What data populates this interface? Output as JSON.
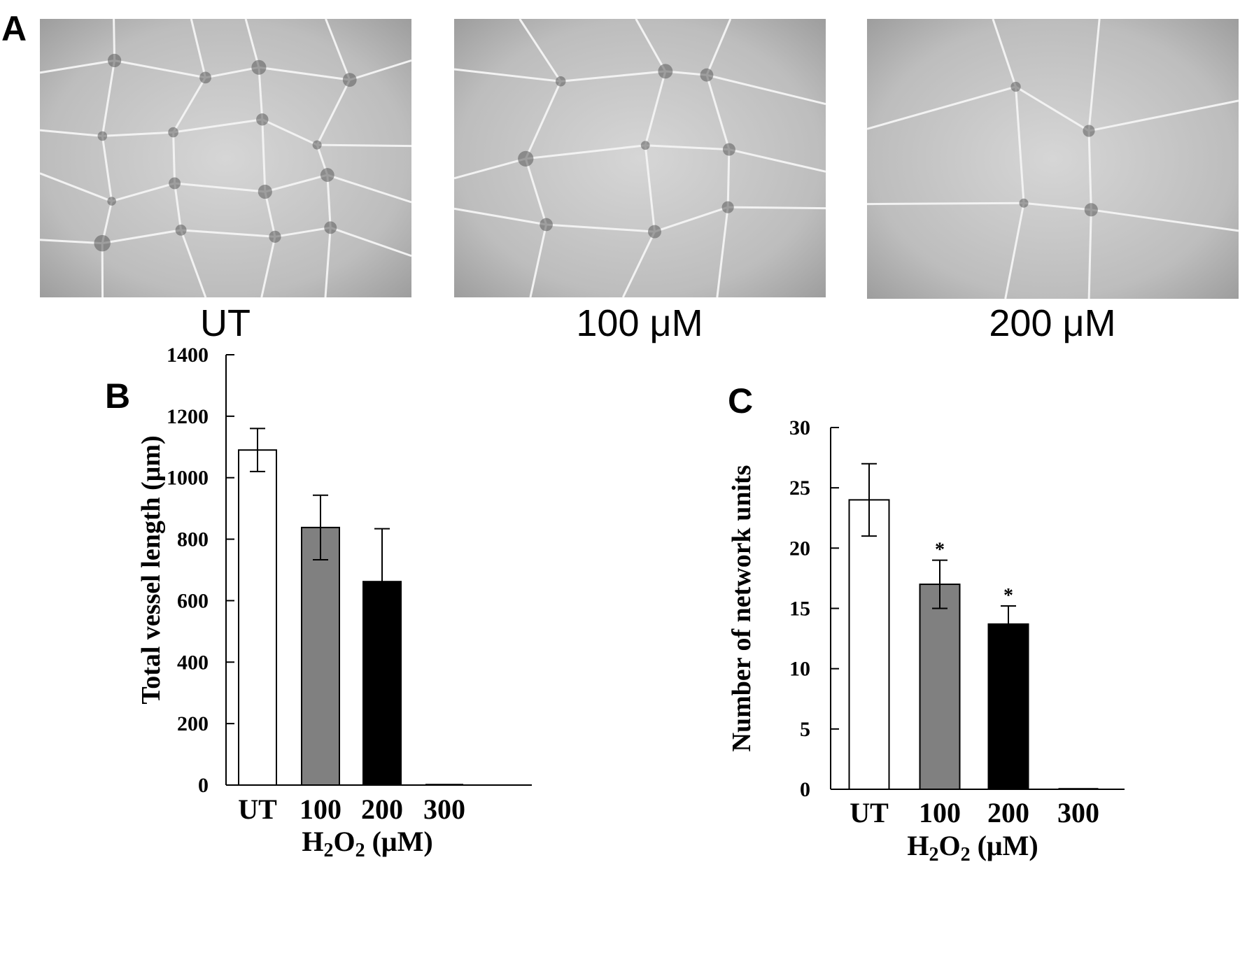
{
  "panels": {
    "a": {
      "letter": "A",
      "images": [
        {
          "caption": "UT",
          "vessel_density": "dense"
        },
        {
          "caption": "100 μM",
          "vessel_density": "medium"
        },
        {
          "caption": "200 μM",
          "vessel_density": "sparse"
        }
      ]
    },
    "b": {
      "letter": "B"
    },
    "c": {
      "letter": "C"
    }
  },
  "chart_data": [
    {
      "type": "bar",
      "panel": "B",
      "categories": [
        "UT",
        "100",
        "200",
        "300"
      ],
      "values": [
        1090,
        838,
        662,
        0
      ],
      "errors": [
        70,
        105,
        172,
        0
      ],
      "significance": [
        "",
        "",
        "",
        ""
      ],
      "bar_colors": [
        "#ffffff",
        "#808080",
        "#000000",
        "#ffffff"
      ],
      "xlabel": {
        "main": "H",
        "sub1": "2",
        "mid": "O",
        "sub2": "2",
        "tail": " (μM)"
      },
      "ylabel": "Total vessel length (μm)",
      "ylim": [
        0,
        1400
      ],
      "yticks": [
        0,
        200,
        400,
        600,
        800,
        1000,
        1200,
        1400
      ]
    },
    {
      "type": "bar",
      "panel": "C",
      "categories": [
        "UT",
        "100",
        "200",
        "300"
      ],
      "values": [
        24,
        17,
        13.7,
        0
      ],
      "errors": [
        3,
        2,
        1.5,
        0
      ],
      "significance": [
        "",
        "*",
        "*",
        ""
      ],
      "bar_colors": [
        "#ffffff",
        "#808080",
        "#000000",
        "#ffffff"
      ],
      "xlabel": {
        "main": "H",
        "sub1": "2",
        "mid": "O",
        "sub2": "2",
        "tail": " (μM)"
      },
      "ylabel": "Number of network units",
      "ylim": [
        0,
        30
      ],
      "yticks": [
        0,
        5,
        10,
        15,
        20,
        25,
        30
      ]
    }
  ]
}
